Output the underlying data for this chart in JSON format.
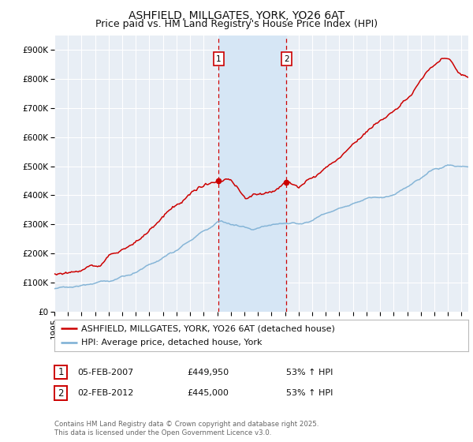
{
  "title": "ASHFIELD, MILLGATES, YORK, YO26 6AT",
  "subtitle": "Price paid vs. HM Land Registry's House Price Index (HPI)",
  "ylim": [
    0,
    950000
  ],
  "yticks": [
    0,
    100000,
    200000,
    300000,
    400000,
    500000,
    600000,
    700000,
    800000,
    900000
  ],
  "ytick_labels": [
    "£0",
    "£100K",
    "£200K",
    "£300K",
    "£400K",
    "£500K",
    "£600K",
    "£700K",
    "£800K",
    "£900K"
  ],
  "background_color": "#ffffff",
  "plot_bg_color": "#e8eef5",
  "grid_color": "#ffffff",
  "line1_color": "#cc0000",
  "line2_color": "#7bafd4",
  "shade_color": "#d6e6f5",
  "vline_color": "#cc0000",
  "legend1_label": "ASHFIELD, MILLGATES, YORK, YO26 6AT (detached house)",
  "legend2_label": "HPI: Average price, detached house, York",
  "table_row1": [
    "1",
    "05-FEB-2007",
    "£449,950",
    "53% ↑ HPI"
  ],
  "table_row2": [
    "2",
    "02-FEB-2012",
    "£445,000",
    "53% ↑ HPI"
  ],
  "footnote": "Contains HM Land Registry data © Crown copyright and database right 2025.\nThis data is licensed under the Open Government Licence v3.0.",
  "sale1_year": 2007.1,
  "sale2_year": 2012.1,
  "sale1_val": 449950,
  "sale2_val": 445000,
  "title_fontsize": 10,
  "subtitle_fontsize": 9,
  "tick_fontsize": 7.5,
  "legend_fontsize": 8
}
